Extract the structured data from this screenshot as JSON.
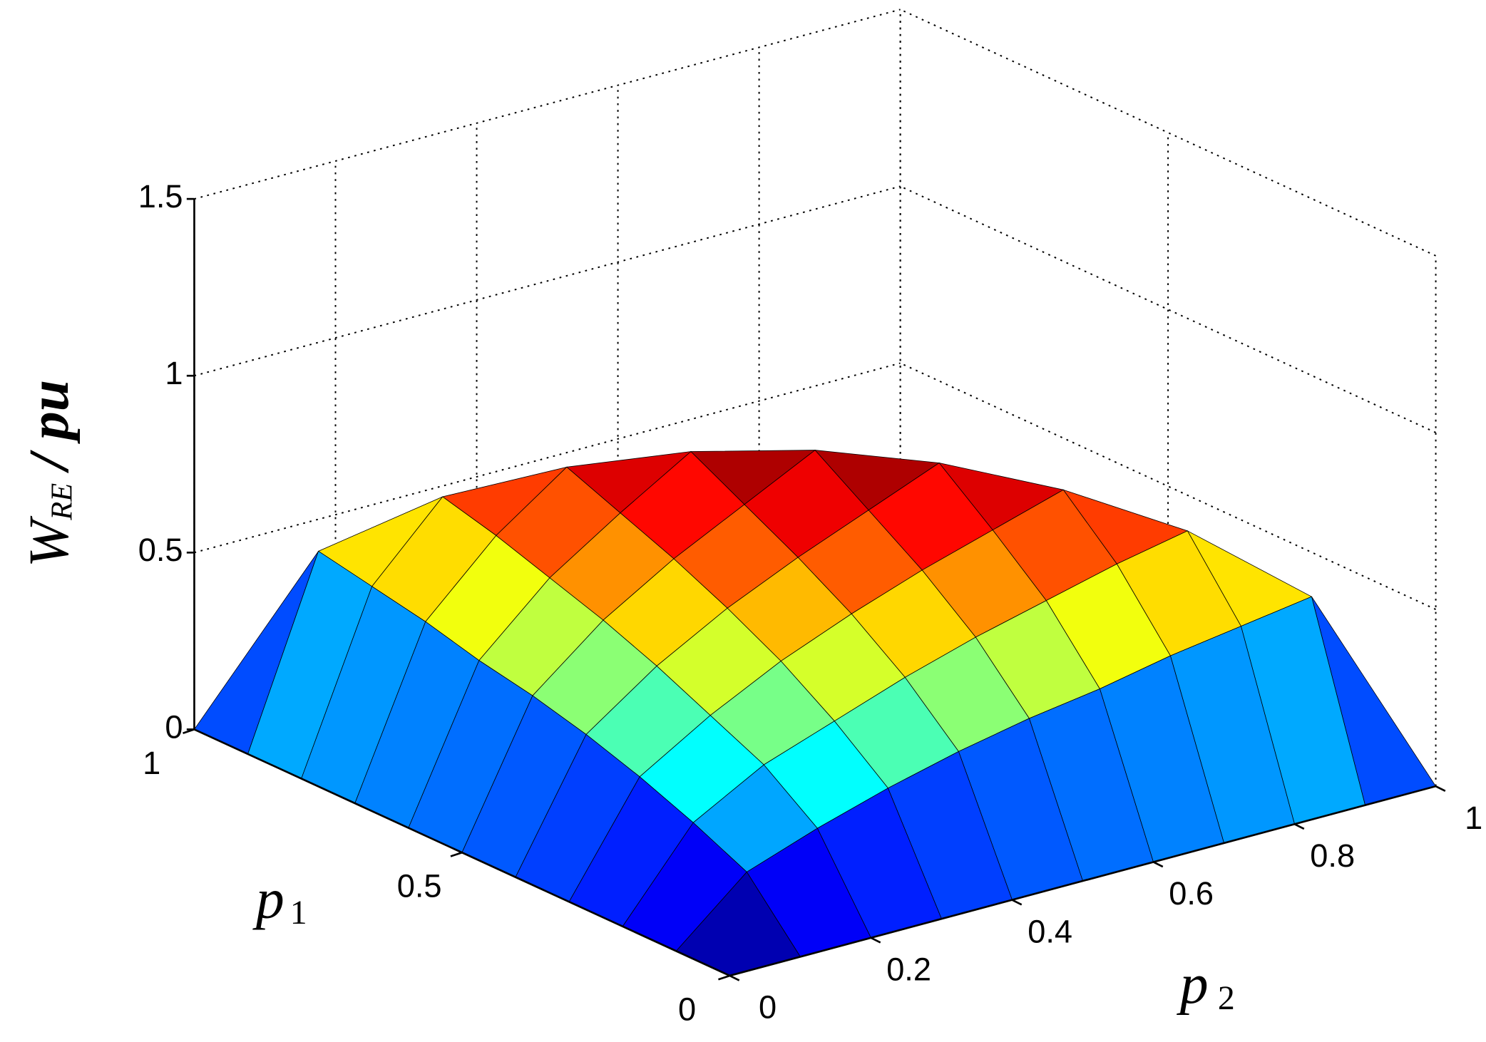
{
  "chart_data": {
    "type": "surface",
    "zlabel": {
      "text": "W",
      "subscript": "RE",
      "suffix": "/ pu"
    },
    "xlabel": {
      "text": "p",
      "subscript": "1"
    },
    "ylabel": {
      "text": "p",
      "subscript": "2"
    },
    "x": [
      0,
      0.1,
      0.2,
      0.3,
      0.4,
      0.5,
      0.6,
      0.7,
      0.8,
      0.9,
      1
    ],
    "y": [
      0,
      0.1,
      0.2,
      0.3,
      0.4,
      0.5,
      0.6,
      0.7,
      0.8,
      0.9,
      1
    ],
    "z": [
      [
        0,
        0,
        0,
        0,
        0,
        0,
        0,
        0,
        0,
        0,
        0
      ],
      [
        0,
        0.17,
        0.24,
        0.3,
        0.35,
        0.39,
        0.42,
        0.46,
        0.49,
        0.52,
        null
      ],
      [
        0,
        0.24,
        0.35,
        0.42,
        0.49,
        0.55,
        0.6,
        0.65,
        0.69,
        null,
        null
      ],
      [
        0,
        0.3,
        0.42,
        0.52,
        0.6,
        0.67,
        0.73,
        0.79,
        null,
        null,
        null
      ],
      [
        0,
        0.35,
        0.49,
        0.6,
        0.69,
        0.77,
        0.85,
        null,
        null,
        null,
        null
      ],
      [
        0,
        0.39,
        0.55,
        0.67,
        0.77,
        0.87,
        null,
        null,
        null,
        null,
        null
      ],
      [
        0,
        0.42,
        0.6,
        0.73,
        0.85,
        null,
        null,
        null,
        null,
        null,
        null
      ],
      [
        0,
        0.46,
        0.65,
        0.79,
        null,
        null,
        null,
        null,
        null,
        null,
        null
      ],
      [
        0,
        0.49,
        0.69,
        null,
        null,
        null,
        null,
        null,
        null,
        null,
        null
      ],
      [
        0,
        0.52,
        null,
        null,
        null,
        null,
        null,
        null,
        null,
        null,
        null
      ],
      [
        0,
        null,
        null,
        null,
        null,
        null,
        null,
        null,
        null,
        null,
        null
      ]
    ],
    "xlim": [
      0,
      1
    ],
    "ylim": [
      0,
      1
    ],
    "zlim": [
      0,
      1.5
    ],
    "xticks": [
      0,
      0.5,
      1
    ],
    "yticks": [
      0,
      0.2,
      0.4,
      0.6,
      0.8,
      1
    ],
    "zticks": [
      0,
      0.5,
      1,
      1.5
    ],
    "grid": true,
    "colormap": "jet"
  }
}
